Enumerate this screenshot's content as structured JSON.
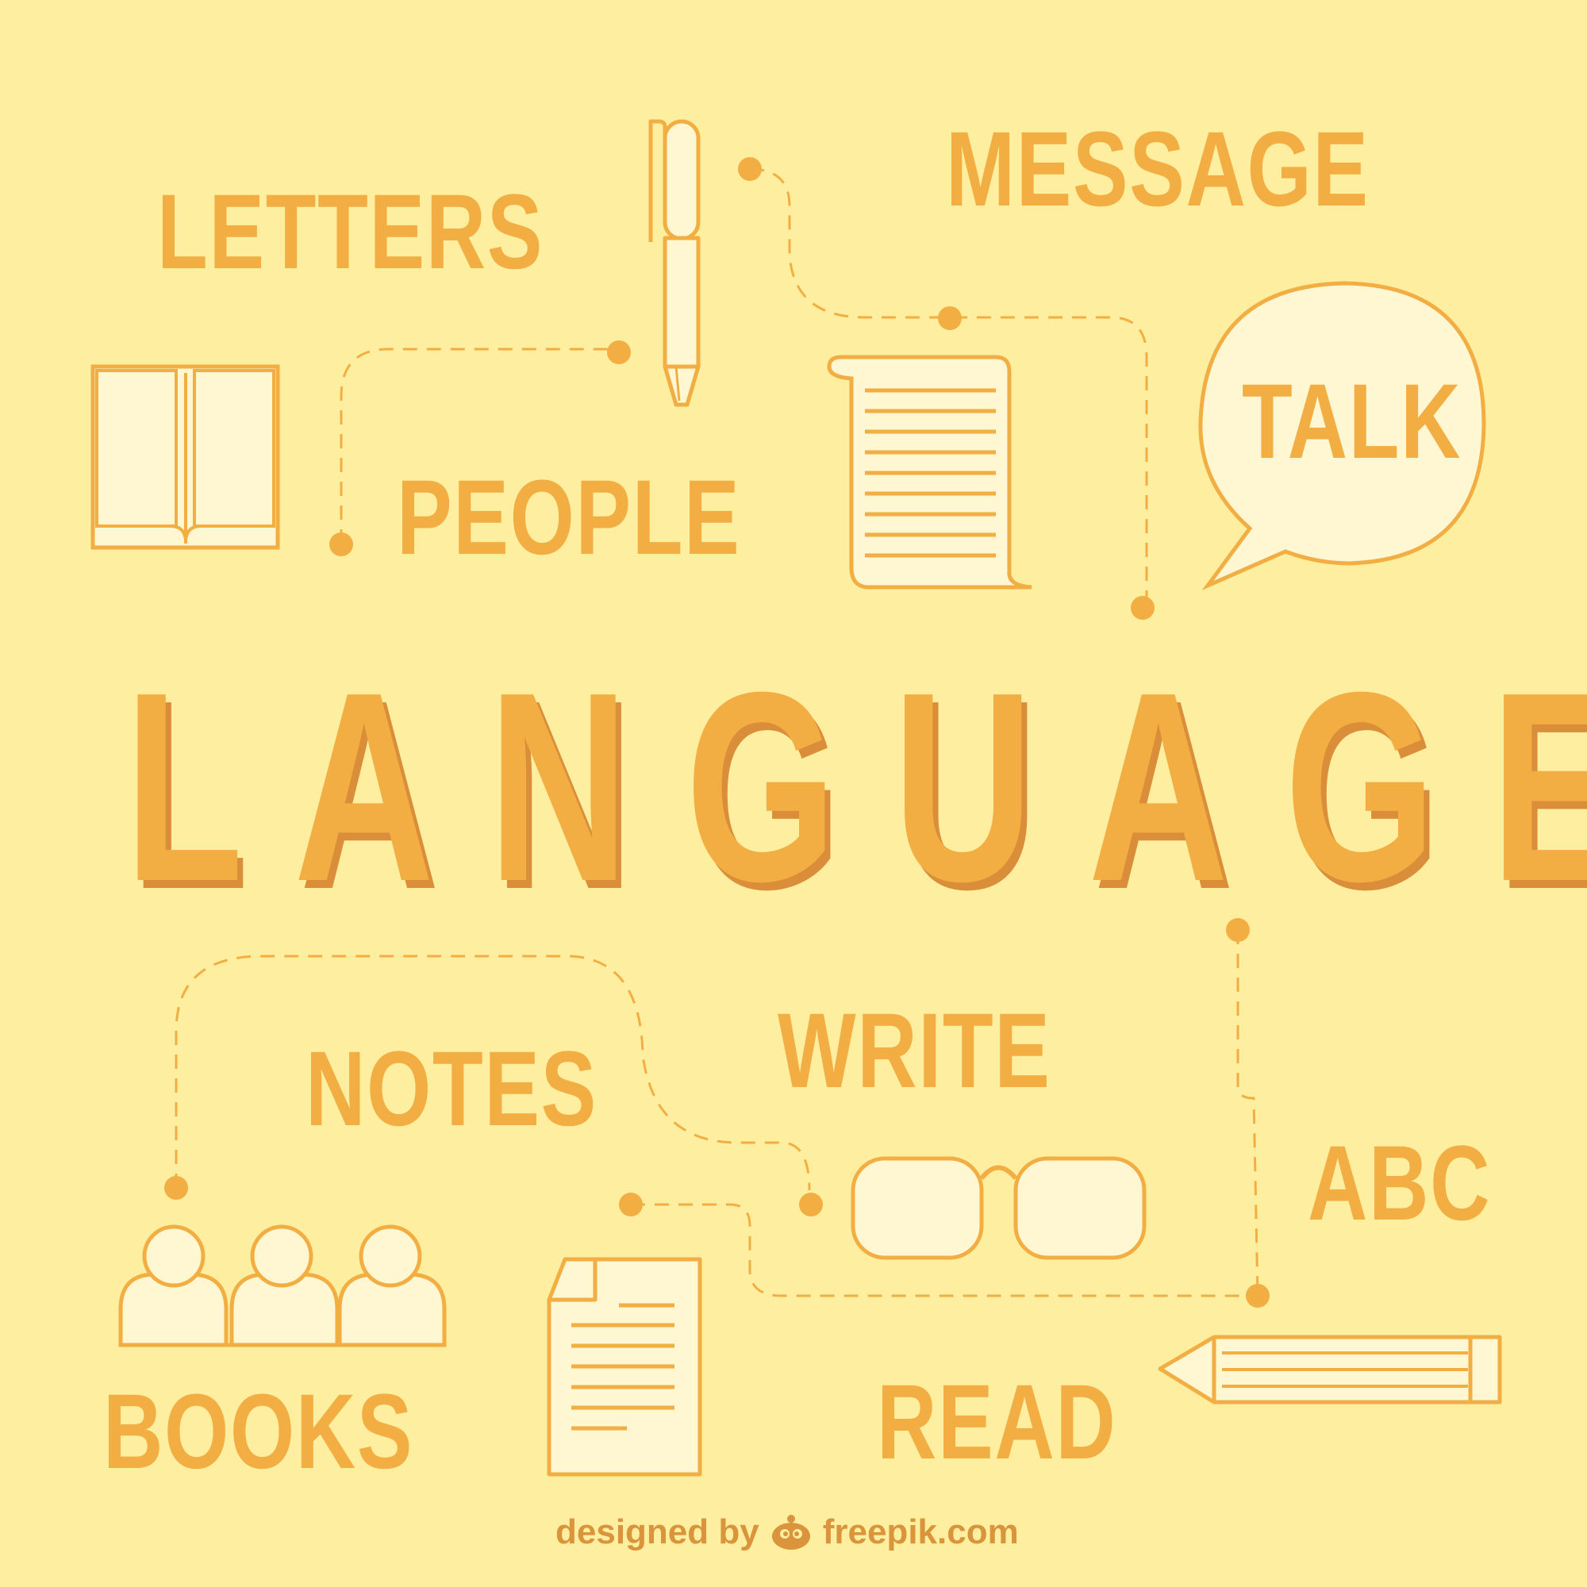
{
  "title": "LANGUAGE",
  "words": {
    "letters": "LETTERS",
    "message": "MESSAGE",
    "people": "PEOPLE",
    "talk": "TALK",
    "notes": "NOTES",
    "write": "WRITE",
    "abc": "ABC",
    "books": "BOOKS",
    "read": "READ"
  },
  "credit": {
    "prefix": "designed by",
    "brand": "freepik.com"
  },
  "colors": {
    "background": "#FEEFA0",
    "accent": "#F3AE43",
    "shadow": "#DA8E3A",
    "icon_fill": "#FFF7D2"
  },
  "icons": [
    "pen-icon",
    "open-book-icon",
    "document-scroll-icon",
    "speech-bubble-icon",
    "glasses-icon",
    "people-group-icon",
    "paper-sheet-icon",
    "pencil-icon",
    "freepik-logo-icon"
  ]
}
